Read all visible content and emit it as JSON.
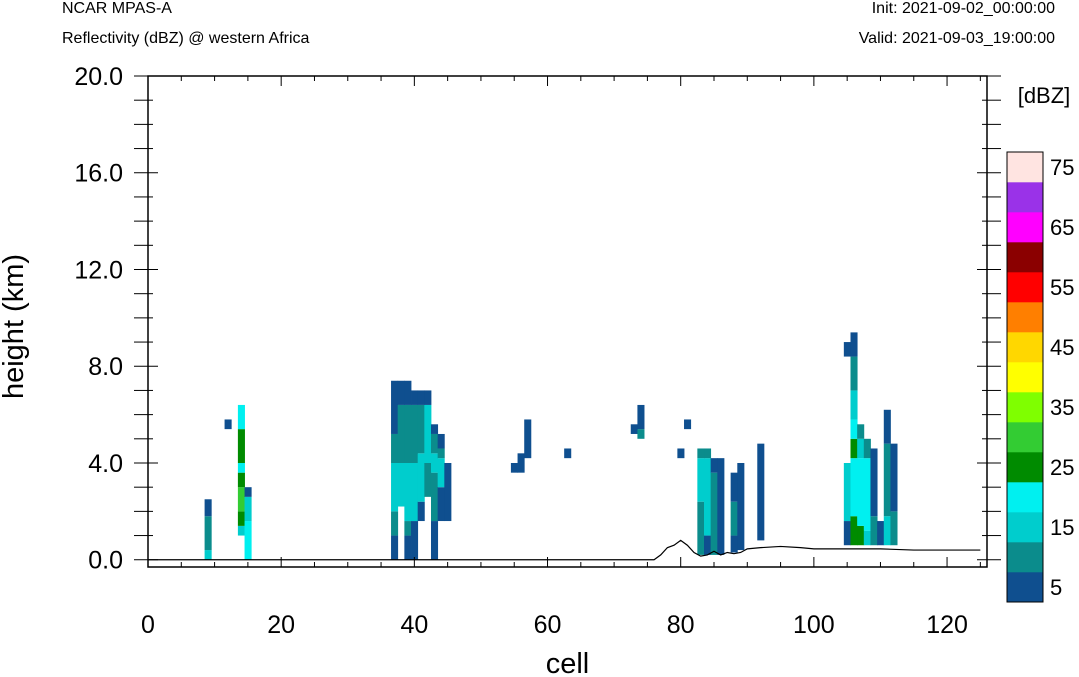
{
  "header": {
    "model": "NCAR MPAS-A",
    "subtitle": "Reflectivity (dBZ) @ western Africa",
    "init": "Init: 2021-09-02_00:00:00",
    "valid": "Valid: 2021-09-03_19:00:00"
  },
  "chart_data": {
    "type": "heatmap",
    "xlabel": "cell",
    "ylabel": "height (km)",
    "xlim": [
      0,
      126
    ],
    "ylim": [
      -0.3,
      20.0
    ],
    "x_ticks": [
      "0",
      "20",
      "40",
      "60",
      "80",
      "100",
      "120"
    ],
    "y_ticks": [
      "0.0",
      "4.0",
      "8.0",
      "12.0",
      "16.0",
      "20.0"
    ],
    "colorbar": {
      "units": "[dBZ]",
      "labels": [
        "5",
        "15",
        "25",
        "35",
        "45",
        "55",
        "65",
        "75"
      ],
      "levels": [
        5,
        10,
        15,
        20,
        25,
        30,
        35,
        40,
        45,
        50,
        55,
        60,
        65,
        70,
        75,
        80
      ],
      "colors": [
        "#0f4f8f",
        "#0b8c8c",
        "#00cdcd",
        "#00f0f0",
        "#008b00",
        "#33cc33",
        "#7fff00",
        "#ffff00",
        "#ffd700",
        "#ff7f00",
        "#ff0000",
        "#8b0000",
        "#ff00ff",
        "#9a32e8",
        "#ffe4e1"
      ]
    },
    "columns": [
      {
        "cell": 9,
        "cells": [
          [
            0,
            0.4,
            15
          ],
          [
            0.4,
            1.8,
            10
          ],
          [
            1.8,
            2.5,
            5
          ]
        ]
      },
      {
        "cell": 12,
        "cells": [
          [
            5.4,
            5.8,
            5
          ]
        ]
      },
      {
        "cell": 14,
        "cells": [
          [
            1.0,
            1.4,
            15
          ],
          [
            1.4,
            2.0,
            25
          ],
          [
            2.0,
            3.0,
            30
          ],
          [
            3.0,
            3.6,
            25
          ],
          [
            3.6,
            4.0,
            20
          ],
          [
            4.0,
            5.4,
            25
          ],
          [
            5.4,
            6.4,
            20
          ]
        ]
      },
      {
        "cell": 15,
        "cells": [
          [
            0,
            1.6,
            20
          ],
          [
            1.6,
            2.6,
            15
          ],
          [
            2.6,
            3.0,
            5
          ]
        ]
      },
      {
        "cell": 37,
        "cells": [
          [
            0,
            1.0,
            5
          ],
          [
            1.0,
            2.0,
            10
          ],
          [
            2.0,
            4.0,
            15
          ],
          [
            4.0,
            5.2,
            10
          ],
          [
            5.2,
            7.4,
            5
          ]
        ]
      },
      {
        "cell": 38,
        "cells": [
          [
            2.2,
            4.0,
            15
          ],
          [
            4.0,
            6.4,
            10
          ],
          [
            6.4,
            7.4,
            5
          ]
        ]
      },
      {
        "cell": 39,
        "cells": [
          [
            0,
            1.0,
            5
          ],
          [
            1.0,
            1.6,
            10
          ],
          [
            1.6,
            4.0,
            15
          ],
          [
            4.0,
            6.4,
            10
          ],
          [
            6.4,
            7.4,
            5
          ]
        ]
      },
      {
        "cell": 40,
        "cells": [
          [
            0,
            1.6,
            5
          ],
          [
            1.6,
            4.0,
            15
          ],
          [
            4.0,
            6.4,
            10
          ],
          [
            6.4,
            7.0,
            5
          ]
        ]
      },
      {
        "cell": 41,
        "cells": [
          [
            1.6,
            2.4,
            5
          ],
          [
            2.4,
            4.4,
            15
          ],
          [
            4.4,
            6.4,
            10
          ],
          [
            6.4,
            7.0,
            5
          ]
        ]
      },
      {
        "cell": 42,
        "cells": [
          [
            2.6,
            4.0,
            10
          ],
          [
            4.0,
            6.4,
            15
          ],
          [
            6.4,
            7.0,
            5
          ]
        ]
      },
      {
        "cell": 43,
        "cells": [
          [
            0,
            1.6,
            5
          ],
          [
            1.6,
            3.6,
            10
          ],
          [
            3.6,
            4.4,
            15
          ],
          [
            4.4,
            5.2,
            10
          ],
          [
            5.2,
            5.6,
            5
          ]
        ]
      },
      {
        "cell": 44,
        "cells": [
          [
            1.6,
            3.0,
            5
          ],
          [
            3.0,
            4.2,
            15
          ],
          [
            4.2,
            4.6,
            10
          ],
          [
            4.6,
            5.2,
            5
          ]
        ]
      },
      {
        "cell": 45,
        "cells": [
          [
            1.6,
            4.0,
            5
          ]
        ]
      },
      {
        "cell": 55,
        "cells": [
          [
            3.6,
            4.0,
            5
          ]
        ]
      },
      {
        "cell": 56,
        "cells": [
          [
            3.6,
            4.4,
            5
          ]
        ]
      },
      {
        "cell": 57,
        "cells": [
          [
            4.2,
            5.8,
            5
          ]
        ]
      },
      {
        "cell": 63,
        "cells": [
          [
            4.2,
            4.6,
            5
          ]
        ]
      },
      {
        "cell": 73,
        "cells": [
          [
            5.2,
            5.6,
            5
          ]
        ]
      },
      {
        "cell": 74,
        "cells": [
          [
            5.0,
            5.4,
            10
          ],
          [
            5.4,
            6.4,
            5
          ]
        ]
      },
      {
        "cell": 80,
        "cells": [
          [
            4.2,
            4.6,
            5
          ]
        ]
      },
      {
        "cell": 81,
        "cells": [
          [
            5.4,
            5.8,
            5
          ]
        ]
      },
      {
        "cell": 83,
        "cells": [
          [
            0.2,
            2.4,
            10
          ],
          [
            2.4,
            4.2,
            15
          ],
          [
            4.2,
            4.6,
            10
          ]
        ]
      },
      {
        "cell": 84,
        "cells": [
          [
            0.2,
            1.0,
            5
          ],
          [
            1.0,
            4.2,
            15
          ],
          [
            4.2,
            4.6,
            10
          ]
        ]
      },
      {
        "cell": 85,
        "cells": [
          [
            0.2,
            3.6,
            10
          ],
          [
            3.6,
            4.2,
            5
          ]
        ]
      },
      {
        "cell": 86,
        "cells": [
          [
            0.2,
            4.2,
            5
          ]
        ]
      },
      {
        "cell": 88,
        "cells": [
          [
            0.3,
            1.0,
            5
          ],
          [
            1.0,
            2.4,
            10
          ],
          [
            2.4,
            3.6,
            5
          ]
        ]
      },
      {
        "cell": 89,
        "cells": [
          [
            0.4,
            4.0,
            5
          ]
        ]
      },
      {
        "cell": 92,
        "cells": [
          [
            0.8,
            4.8,
            5
          ]
        ]
      },
      {
        "cell": 105,
        "cells": [
          [
            0.6,
            1.6,
            5
          ],
          [
            1.6,
            4.0,
            15
          ],
          [
            8.4,
            9.0,
            5
          ]
        ]
      },
      {
        "cell": 106,
        "cells": [
          [
            0.6,
            1.8,
            25
          ],
          [
            1.8,
            4.2,
            20
          ],
          [
            4.2,
            5.0,
            25
          ],
          [
            5.0,
            5.8,
            20
          ],
          [
            5.8,
            7.0,
            15
          ],
          [
            7.0,
            8.4,
            10
          ],
          [
            8.4,
            9.4,
            5
          ]
        ]
      },
      {
        "cell": 107,
        "cells": [
          [
            0.6,
            1.4,
            25
          ],
          [
            1.4,
            4.2,
            20
          ],
          [
            4.2,
            5.0,
            15
          ],
          [
            5.0,
            5.6,
            10
          ]
        ]
      },
      {
        "cell": 108,
        "cells": [
          [
            0.6,
            1.2,
            15
          ],
          [
            1.2,
            4.2,
            20
          ],
          [
            4.2,
            5.0,
            10
          ]
        ]
      },
      {
        "cell": 109,
        "cells": [
          [
            0.6,
            1.8,
            10
          ],
          [
            1.8,
            4.6,
            5
          ]
        ]
      },
      {
        "cell": 110,
        "cells": [
          [
            0.6,
            1.6,
            5
          ]
        ]
      },
      {
        "cell": 111,
        "cells": [
          [
            0.6,
            1.8,
            15
          ],
          [
            1.8,
            4.8,
            10
          ],
          [
            4.8,
            6.2,
            5
          ]
        ]
      },
      {
        "cell": 112,
        "cells": [
          [
            0.6,
            2.0,
            10
          ],
          [
            2.0,
            4.8,
            5
          ]
        ]
      }
    ],
    "terrain": {
      "x": [
        0,
        76,
        77,
        78,
        79,
        80,
        81,
        82,
        83,
        84,
        85,
        86,
        87,
        88,
        89,
        90,
        92,
        95,
        98,
        100,
        105,
        110,
        115,
        120,
        125
      ],
      "y": [
        0,
        0,
        0.2,
        0.5,
        0.6,
        0.8,
        0.6,
        0.3,
        0.15,
        0.2,
        0.35,
        0.2,
        0.3,
        0.25,
        0.3,
        0.45,
        0.5,
        0.55,
        0.5,
        0.45,
        0.45,
        0.45,
        0.4,
        0.4,
        0.4
      ]
    }
  }
}
